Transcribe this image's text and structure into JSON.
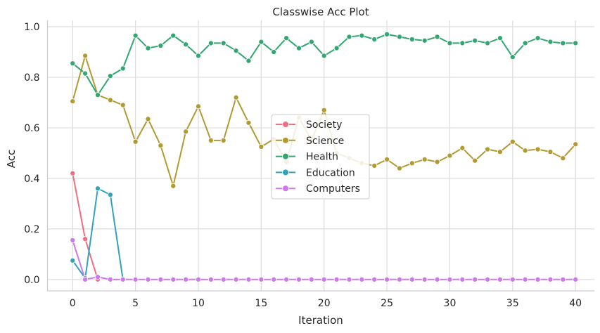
{
  "chart_data": {
    "type": "line",
    "title": "Classwise Acc Plot",
    "xlabel": "Iteration",
    "ylabel": "Acc",
    "xlim": [
      -2,
      41.5
    ],
    "ylim": [
      -0.045,
      1.025
    ],
    "xticks": [
      0,
      5,
      10,
      15,
      20,
      25,
      30,
      35,
      40
    ],
    "yticks": [
      0.0,
      0.2,
      0.4,
      0.6,
      0.8,
      1.0
    ],
    "xtick_labels": [
      "0",
      "5",
      "10",
      "15",
      "20",
      "25",
      "30",
      "35",
      "40"
    ],
    "ytick_labels": [
      "0.0",
      "0.2",
      "0.4",
      "0.6",
      "0.8",
      "1.0"
    ],
    "grid": true,
    "legend_position": "center",
    "series": [
      {
        "name": "Society",
        "color": "#ee6e84",
        "x": [
          0,
          1,
          2
        ],
        "y": [
          0.42,
          0.16,
          0.0
        ]
      },
      {
        "name": "Science",
        "color": "#b19a32",
        "x": [
          0,
          1,
          2,
          3,
          4,
          5,
          6,
          7,
          8,
          9,
          10,
          11,
          12,
          13,
          14,
          15,
          16,
          17,
          18,
          19,
          20,
          21,
          22,
          23,
          24,
          25,
          26,
          27,
          28,
          29,
          30,
          31,
          32,
          33,
          34,
          35,
          36,
          37,
          38,
          39,
          40
        ],
        "y": [
          0.705,
          0.885,
          0.73,
          0.71,
          0.69,
          0.545,
          0.635,
          0.53,
          0.37,
          0.585,
          0.685,
          0.55,
          0.55,
          0.72,
          0.62,
          0.525,
          0.555,
          0.465,
          0.64,
          0.55,
          0.67,
          0.5,
          0.48,
          0.46,
          0.45,
          0.475,
          0.44,
          0.46,
          0.475,
          0.465,
          0.49,
          0.52,
          0.47,
          0.515,
          0.505,
          0.545,
          0.51,
          0.515,
          0.505,
          0.48,
          0.535
        ]
      },
      {
        "name": "Health",
        "color": "#33a671",
        "x": [
          0,
          1,
          2,
          3,
          4,
          5,
          6,
          7,
          8,
          9,
          10,
          11,
          12,
          13,
          14,
          15,
          16,
          17,
          18,
          19,
          20,
          21,
          22,
          23,
          24,
          25,
          26,
          27,
          28,
          29,
          30,
          31,
          32,
          33,
          34,
          35,
          36,
          37,
          38,
          39,
          40
        ],
        "y": [
          0.855,
          0.815,
          0.73,
          0.805,
          0.835,
          0.965,
          0.915,
          0.925,
          0.965,
          0.93,
          0.885,
          0.935,
          0.935,
          0.905,
          0.865,
          0.94,
          0.9,
          0.955,
          0.915,
          0.94,
          0.885,
          0.915,
          0.96,
          0.965,
          0.95,
          0.97,
          0.96,
          0.95,
          0.945,
          0.96,
          0.935,
          0.935,
          0.945,
          0.935,
          0.955,
          0.88,
          0.935,
          0.955,
          0.94,
          0.935,
          0.935
        ]
      },
      {
        "name": "Education",
        "color": "#34a2b8",
        "x": [
          0,
          1,
          2,
          3,
          4
        ],
        "y": [
          0.075,
          0.005,
          0.36,
          0.335,
          0.0
        ]
      },
      {
        "name": "Computers",
        "color": "#cb79eb",
        "x": [
          0,
          1,
          2,
          3,
          4,
          5,
          6,
          7,
          8,
          9,
          10,
          11,
          12,
          13,
          14,
          15,
          16,
          17,
          18,
          19,
          20,
          21,
          22,
          23,
          24,
          25,
          26,
          27,
          28,
          29,
          30,
          31,
          32,
          33,
          34,
          35,
          36,
          37,
          38,
          39,
          40
        ],
        "y": [
          0.155,
          0.0,
          0.01,
          0.0,
          0.0,
          0.0,
          0.0,
          0.0,
          0.0,
          0.0,
          0.0,
          0.0,
          0.0,
          0.0,
          0.0,
          0.0,
          0.0,
          0.0,
          0.0,
          0.0,
          0.0,
          0.0,
          0.0,
          0.0,
          0.0,
          0.0,
          0.0,
          0.0,
          0.0,
          0.0,
          0.0,
          0.0,
          0.0,
          0.0,
          0.0,
          0.0,
          0.0,
          0.0,
          0.0,
          0.0,
          0.0
        ]
      }
    ]
  }
}
